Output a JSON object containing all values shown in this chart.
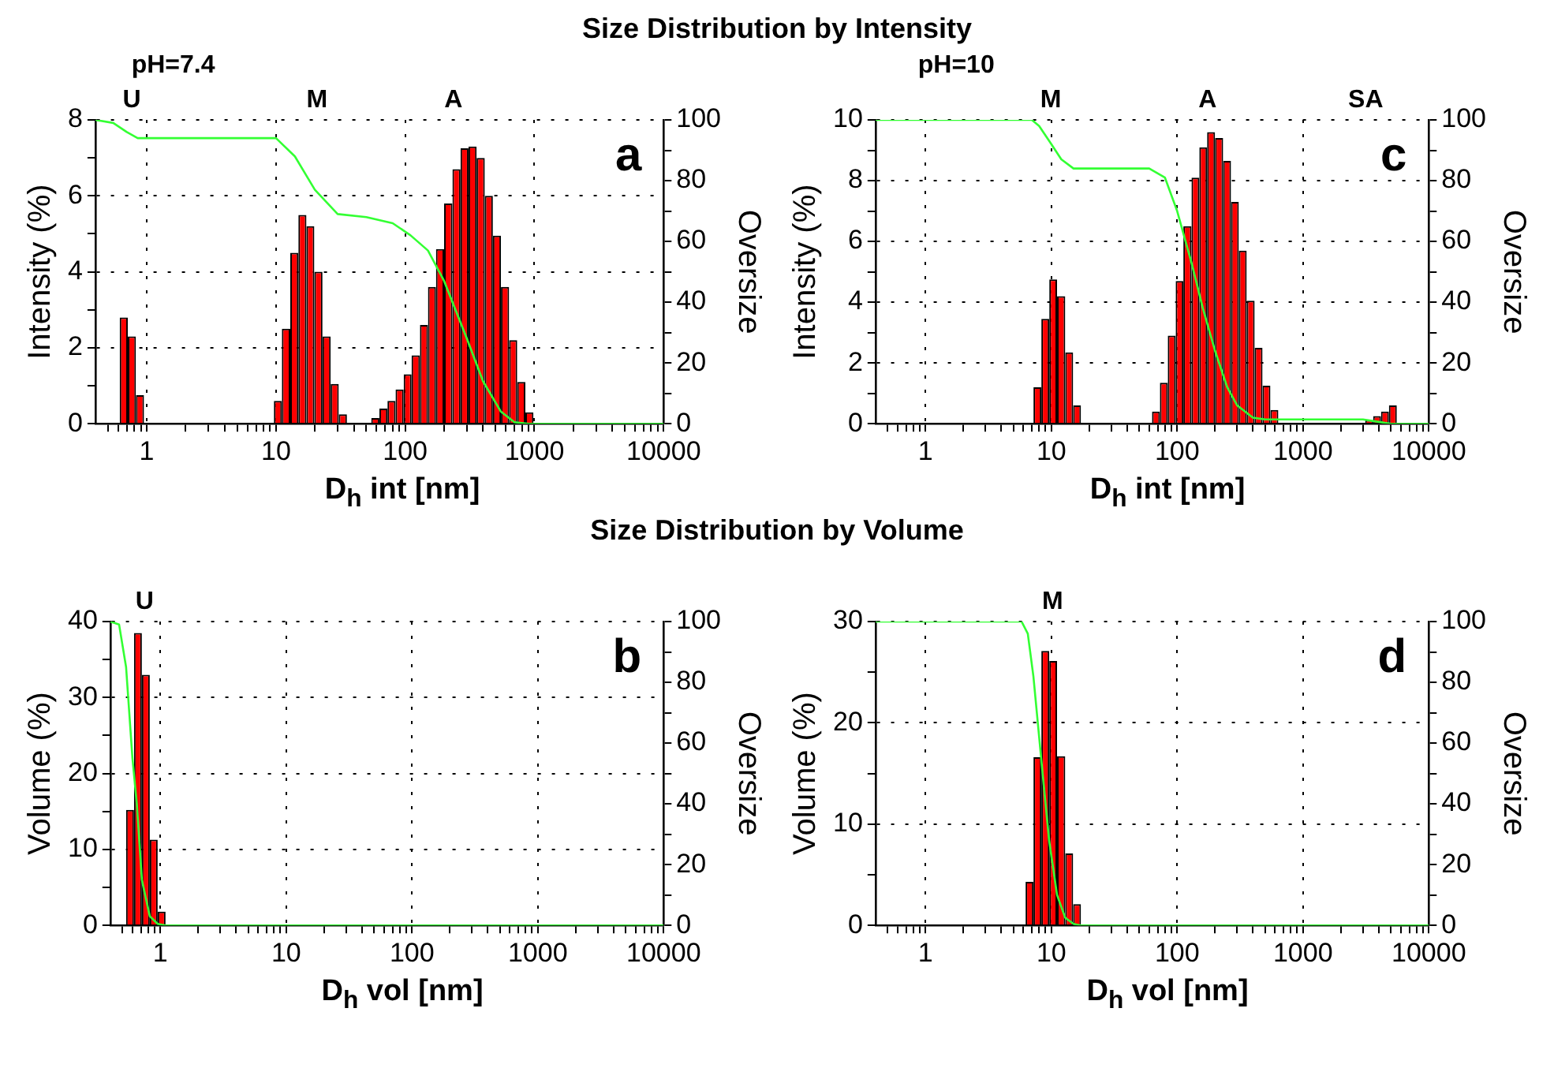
{
  "chart_data": [
    {
      "type": "histogram",
      "title": "Size Distribution by Intensity",
      "xlabel": "D$_{h}$ int [nm]",
      "ylabel": "Intensity (%)",
      "y2label": "Oversize",
      "log": "x",
      "grid": true,
      "xlim": [
        0.4,
        10000
      ],
      "xticks": [
        {
          "value": 0.5,
          "label": null
        },
        {
          "value": 0.6,
          "label": null
        },
        {
          "value": 0.7,
          "label": null
        },
        {
          "value": 0.8,
          "label": null
        },
        {
          "value": 0.9,
          "label": null
        },
        1,
        {
          "value": 2,
          "label": null
        },
        {
          "value": 3,
          "label": null
        },
        {
          "value": 4,
          "label": null
        },
        {
          "value": 5,
          "label": null
        },
        {
          "value": 6,
          "label": null
        },
        {
          "value": 7,
          "label": null
        },
        {
          "value": 8,
          "label": null
        },
        {
          "value": 9,
          "label": null
        },
        10,
        {
          "value": 20,
          "label": null
        },
        {
          "value": 30,
          "label": null
        },
        {
          "value": 40,
          "label": null
        },
        {
          "value": 50,
          "label": null
        },
        {
          "value": 60,
          "label": null
        },
        {
          "value": 70,
          "label": null
        },
        {
          "value": 80,
          "label": null
        },
        {
          "value": 90,
          "label": null
        },
        100,
        {
          "value": 200,
          "label": null
        },
        {
          "value": 300,
          "label": null
        },
        {
          "value": 400,
          "label": null
        },
        {
          "value": 500,
          "label": null
        },
        {
          "value": 600,
          "label": null
        },
        {
          "value": 700,
          "label": null
        },
        {
          "value": 800,
          "label": null
        },
        {
          "value": 900,
          "label": null
        },
        1000,
        {
          "value": 2000,
          "label": null
        },
        {
          "value": 3000,
          "label": null
        },
        {
          "value": 4000,
          "label": null
        },
        {
          "value": 5000,
          "label": null
        },
        {
          "value": 6000,
          "label": null
        },
        {
          "value": 7000,
          "label": null
        },
        {
          "value": 8000,
          "label": null
        },
        {
          "value": 9000,
          "label": null
        },
        10000
      ],
      "ylim": [
        0,
        8
      ],
      "yticks": [
        0,
        {
          "value": 1,
          "label": null
        },
        2,
        {
          "value": 3,
          "label": null
        },
        4,
        {
          "value": 5,
          "label": null
        },
        6,
        {
          "value": 7,
          "label": null
        },
        8
      ],
      "y2lim": [
        0,
        100
      ],
      "y2ticks": [
        0,
        {
          "value": 10,
          "label": null
        },
        20,
        {
          "value": 30,
          "label": null
        },
        40,
        {
          "value": 50,
          "label": null
        },
        60,
        {
          "value": 70,
          "label": null
        },
        80,
        {
          "value": 90,
          "label": null
        },
        100
      ],
      "annotations": [
        "pH=7.4",
        "U",
        "M",
        "A",
        "a"
      ],
      "series": [
        {
          "color": "#ff0000",
          "bins": [
            0.617,
            0.713,
            0.824,
            0.952,
            1.1,
            1.27,
            1.47,
            1.7,
            1.96,
            2.27,
            2.62,
            3.03,
            3.5,
            4.04,
            4.67,
            5.4,
            6.24,
            7.21,
            8.33,
            9.63,
            11.1,
            12.9,
            14.9,
            17.2,
            19.8,
            22.9,
            26.5,
            30.6,
            35.4,
            40.9,
            47.2,
            54.6,
            63.1,
            72.9,
            84.2,
            97.3,
            112,
            130,
            150,
            173,
            200,
            232,
            268,
            309,
            357,
            413,
            477,
            551,
            637,
            736,
            851,
            983
          ],
          "values": [
            2.8,
            2.3,
            0.75,
            0,
            0,
            0,
            0,
            0,
            0,
            0,
            0,
            0,
            0,
            0,
            0,
            0,
            0,
            0,
            0,
            0.6,
            2.5,
            4.5,
            5.5,
            5.2,
            4,
            2.3,
            1.05,
            0.25,
            0,
            0,
            0,
            0.15,
            0.4,
            0.6,
            0.9,
            1.3,
            1.8,
            2.6,
            3.6,
            4.6,
            5.8,
            6.7,
            7.25,
            7.3,
            7,
            6,
            4.95,
            3.6,
            2.2,
            1.1,
            0.3
          ]
        },
        {
          "type": "line",
          "axis": "y2",
          "color": "#33ff33",
          "x": [
            0.4,
            0.55,
            0.7,
            0.85,
            1,
            10,
            14,
            20,
            30,
            50,
            80,
            110,
            150,
            200,
            300,
            400,
            550,
            700,
            900,
            10000
          ],
          "values": [
            100,
            99,
            96,
            94,
            94,
            94,
            88,
            77,
            69,
            68,
            66,
            62,
            57,
            47,
            28,
            14,
            4,
            0.5,
            0,
            0
          ]
        }
      ]
    },
    {
      "type": "histogram",
      "xlabel": "D$_{h}$ int [nm]",
      "ylabel": "Intensity (%)",
      "y2label": "Oversize",
      "log": "x",
      "grid": true,
      "xlim": [
        0.4,
        10000
      ],
      "xticks": [
        {
          "value": 0.5,
          "label": null
        },
        {
          "value": 0.6,
          "label": null
        },
        {
          "value": 0.7,
          "label": null
        },
        {
          "value": 0.8,
          "label": null
        },
        {
          "value": 0.9,
          "label": null
        },
        1,
        {
          "value": 2,
          "label": null
        },
        {
          "value": 3,
          "label": null
        },
        {
          "value": 4,
          "label": null
        },
        {
          "value": 5,
          "label": null
        },
        {
          "value": 6,
          "label": null
        },
        {
          "value": 7,
          "label": null
        },
        {
          "value": 8,
          "label": null
        },
        {
          "value": 9,
          "label": null
        },
        10,
        {
          "value": 20,
          "label": null
        },
        {
          "value": 30,
          "label": null
        },
        {
          "value": 40,
          "label": null
        },
        {
          "value": 50,
          "label": null
        },
        {
          "value": 60,
          "label": null
        },
        {
          "value": 70,
          "label": null
        },
        {
          "value": 80,
          "label": null
        },
        {
          "value": 90,
          "label": null
        },
        100,
        {
          "value": 200,
          "label": null
        },
        {
          "value": 300,
          "label": null
        },
        {
          "value": 400,
          "label": null
        },
        {
          "value": 500,
          "label": null
        },
        {
          "value": 600,
          "label": null
        },
        {
          "value": 700,
          "label": null
        },
        {
          "value": 800,
          "label": null
        },
        {
          "value": 900,
          "label": null
        },
        1000,
        {
          "value": 2000,
          "label": null
        },
        {
          "value": 3000,
          "label": null
        },
        {
          "value": 4000,
          "label": null
        },
        {
          "value": 5000,
          "label": null
        },
        {
          "value": 6000,
          "label": null
        },
        {
          "value": 7000,
          "label": null
        },
        {
          "value": 8000,
          "label": null
        },
        {
          "value": 9000,
          "label": null
        },
        10000
      ],
      "ylim": [
        0,
        10
      ],
      "yticks": [
        0,
        {
          "value": 1,
          "label": null
        },
        2,
        {
          "value": 3,
          "label": null
        },
        4,
        {
          "value": 5,
          "label": null
        },
        6,
        {
          "value": 7,
          "label": null
        },
        8,
        {
          "value": 9,
          "label": null
        },
        10
      ],
      "y2lim": [
        0,
        100
      ],
      "y2ticks": [
        0,
        {
          "value": 10,
          "label": null
        },
        20,
        {
          "value": 30,
          "label": null
        },
        40,
        {
          "value": 50,
          "label": null
        },
        60,
        {
          "value": 70,
          "label": null
        },
        80,
        {
          "value": 90,
          "label": null
        },
        100
      ],
      "annotations": [
        "pH=10",
        "M",
        "A",
        "SA",
        "c"
      ],
      "series": [
        {
          "color": "#ff0000",
          "bins": [
            7.21,
            8.33,
            9.63,
            11.1,
            12.9,
            14.9,
            17.2,
            19.8,
            22.9,
            26.5,
            30.6,
            35.4,
            40.9,
            47.2,
            54.6,
            63.1,
            72.9,
            84.2,
            97.3,
            112,
            130,
            150,
            173,
            200,
            232,
            268,
            309,
            357,
            413,
            477,
            551,
            637,
            736,
            851,
            983,
            1140,
            1310,
            1520,
            1750,
            2030,
            2340,
            2700,
            3120,
            3610,
            4170,
            4820,
            5570
          ],
          "values": [
            1.2,
            3.45,
            4.75,
            4.2,
            2.35,
            0.6,
            0,
            0,
            0,
            0,
            0,
            0,
            0,
            0,
            0,
            0.4,
            1.35,
            2.9,
            4.7,
            6.5,
            8.1,
            9.1,
            9.6,
            9.4,
            8.65,
            7.3,
            5.7,
            4.05,
            2.5,
            1.25,
            0.45,
            0,
            0,
            0,
            0,
            0,
            0,
            0,
            0,
            0,
            0,
            0,
            0.12,
            0.25,
            0.4,
            0.6
          ]
        },
        {
          "type": "line",
          "axis": "y2",
          "color": "#33ff33",
          "x": [
            0.4,
            7,
            8,
            10,
            12,
            15,
            60,
            80,
            100,
            130,
            160,
            200,
            250,
            300,
            400,
            500,
            3000,
            4000,
            5000,
            10000
          ],
          "values": [
            100,
            100,
            98,
            92,
            87,
            84,
            84,
            81,
            70,
            53,
            38,
            24,
            12,
            6,
            2,
            1.4,
            1.4,
            0.6,
            0,
            0
          ]
        }
      ]
    },
    {
      "type": "histogram",
      "title": "Size Distribution by Volume",
      "xlabel": "D$_{h}$ vol [nm]",
      "ylabel": "Volume (%)",
      "y2label": "Oversize",
      "log": "x",
      "grid": true,
      "xlim": [
        0.4,
        10000
      ],
      "xticks": [
        {
          "value": 0.5,
          "label": null
        },
        {
          "value": 0.6,
          "label": null
        },
        {
          "value": 0.7,
          "label": null
        },
        {
          "value": 0.8,
          "label": null
        },
        {
          "value": 0.9,
          "label": null
        },
        1,
        {
          "value": 2,
          "label": null
        },
        {
          "value": 3,
          "label": null
        },
        {
          "value": 4,
          "label": null
        },
        {
          "value": 5,
          "label": null
        },
        {
          "value": 6,
          "label": null
        },
        {
          "value": 7,
          "label": null
        },
        {
          "value": 8,
          "label": null
        },
        {
          "value": 9,
          "label": null
        },
        10,
        {
          "value": 20,
          "label": null
        },
        {
          "value": 30,
          "label": null
        },
        {
          "value": 40,
          "label": null
        },
        {
          "value": 50,
          "label": null
        },
        {
          "value": 60,
          "label": null
        },
        {
          "value": 70,
          "label": null
        },
        {
          "value": 80,
          "label": null
        },
        {
          "value": 90,
          "label": null
        },
        100,
        {
          "value": 200,
          "label": null
        },
        {
          "value": 300,
          "label": null
        },
        {
          "value": 400,
          "label": null
        },
        {
          "value": 500,
          "label": null
        },
        {
          "value": 600,
          "label": null
        },
        {
          "value": 700,
          "label": null
        },
        {
          "value": 800,
          "label": null
        },
        {
          "value": 900,
          "label": null
        },
        1000,
        {
          "value": 2000,
          "label": null
        },
        {
          "value": 3000,
          "label": null
        },
        {
          "value": 4000,
          "label": null
        },
        {
          "value": 5000,
          "label": null
        },
        {
          "value": 6000,
          "label": null
        },
        {
          "value": 7000,
          "label": null
        },
        {
          "value": 8000,
          "label": null
        },
        {
          "value": 9000,
          "label": null
        },
        10000
      ],
      "ylim": [
        0,
        40
      ],
      "yticks": [
        0,
        {
          "value": 5,
          "label": null
        },
        10,
        {
          "value": 15,
          "label": null
        },
        20,
        {
          "value": 25,
          "label": null
        },
        30,
        {
          "value": 35,
          "label": null
        },
        40
      ],
      "y2lim": [
        0,
        100
      ],
      "y2ticks": [
        0,
        {
          "value": 10,
          "label": null
        },
        20,
        {
          "value": 30,
          "label": null
        },
        40,
        {
          "value": 50,
          "label": null
        },
        60,
        {
          "value": 70,
          "label": null
        },
        80,
        {
          "value": 90,
          "label": null
        },
        100
      ],
      "annotations": [
        "U",
        "b"
      ],
      "series": [
        {
          "color": "#ff0000",
          "bins": [
            0.534,
            0.617,
            0.713,
            0.824,
            0.952,
            1.1
          ],
          "values": [
            15.2,
            38.5,
            33,
            11.3,
            1.8
          ]
        },
        {
          "type": "line",
          "axis": "y2",
          "color": "#33ff33",
          "x": [
            0.4,
            0.47,
            0.534,
            0.6,
            0.65,
            0.713,
            0.824,
            0.952,
            1.1,
            10000
          ],
          "values": [
            100,
            99,
            85,
            55,
            40,
            15,
            3,
            0.5,
            0,
            0
          ]
        }
      ]
    },
    {
      "type": "histogram",
      "xlabel": "D$_{h}$ vol [nm]",
      "ylabel": "Volume (%)",
      "y2label": "Oversize",
      "log": "x",
      "grid": true,
      "xlim": [
        0.4,
        10000
      ],
      "xticks": [
        {
          "value": 0.5,
          "label": null
        },
        {
          "value": 0.6,
          "label": null
        },
        {
          "value": 0.7,
          "label": null
        },
        {
          "value": 0.8,
          "label": null
        },
        {
          "value": 0.9,
          "label": null
        },
        1,
        {
          "value": 2,
          "label": null
        },
        {
          "value": 3,
          "label": null
        },
        {
          "value": 4,
          "label": null
        },
        {
          "value": 5,
          "label": null
        },
        {
          "value": 6,
          "label": null
        },
        {
          "value": 7,
          "label": null
        },
        {
          "value": 8,
          "label": null
        },
        {
          "value": 9,
          "label": null
        },
        10,
        {
          "value": 20,
          "label": null
        },
        {
          "value": 30,
          "label": null
        },
        {
          "value": 40,
          "label": null
        },
        {
          "value": 50,
          "label": null
        },
        {
          "value": 60,
          "label": null
        },
        {
          "value": 70,
          "label": null
        },
        {
          "value": 80,
          "label": null
        },
        {
          "value": 90,
          "label": null
        },
        100,
        {
          "value": 200,
          "label": null
        },
        {
          "value": 300,
          "label": null
        },
        {
          "value": 400,
          "label": null
        },
        {
          "value": 500,
          "label": null
        },
        {
          "value": 600,
          "label": null
        },
        {
          "value": 700,
          "label": null
        },
        {
          "value": 800,
          "label": null
        },
        {
          "value": 900,
          "label": null
        },
        1000,
        {
          "value": 2000,
          "label": null
        },
        {
          "value": 3000,
          "label": null
        },
        {
          "value": 4000,
          "label": null
        },
        {
          "value": 5000,
          "label": null
        },
        {
          "value": 6000,
          "label": null
        },
        {
          "value": 7000,
          "label": null
        },
        {
          "value": 8000,
          "label": null
        },
        {
          "value": 9000,
          "label": null
        },
        10000
      ],
      "ylim": [
        0,
        30
      ],
      "yticks": [
        0,
        {
          "value": 5,
          "label": null
        },
        10,
        {
          "value": 15,
          "label": null
        },
        20,
        {
          "value": 25,
          "label": null
        },
        30
      ],
      "y2lim": [
        0,
        100
      ],
      "y2ticks": [
        0,
        {
          "value": 10,
          "label": null
        },
        20,
        {
          "value": 30,
          "label": null
        },
        40,
        {
          "value": 50,
          "label": null
        },
        60,
        {
          "value": 70,
          "label": null
        },
        80,
        {
          "value": 90,
          "label": null
        },
        100
      ],
      "annotations": [
        "M",
        "d"
      ],
      "series": [
        {
          "color": "#ff0000",
          "bins": [
            6.24,
            7.21,
            8.33,
            9.63,
            11.1,
            12.9,
            14.9,
            17.2
          ],
          "values": [
            4.3,
            16.6,
            27.1,
            26.1,
            16.7,
            7.1,
            2.1
          ]
        },
        {
          "type": "line",
          "axis": "y2",
          "color": "#33ff33",
          "x": [
            0.4,
            5.8,
            6.5,
            7.2,
            8.3,
            9.6,
            11.1,
            12.9,
            15,
            17,
            10000
          ],
          "values": [
            100,
            100,
            96,
            82,
            55,
            28,
            10,
            2.5,
            0.5,
            0,
            0
          ]
        }
      ]
    }
  ]
}
